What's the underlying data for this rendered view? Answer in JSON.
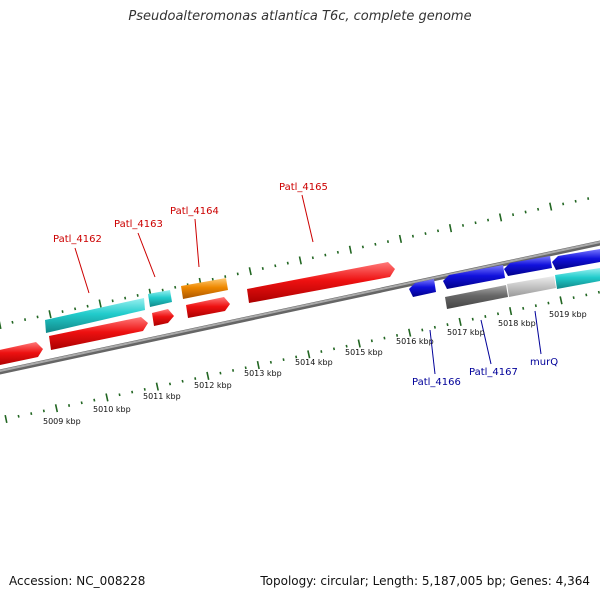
{
  "title": "Pseudoalteromonas atlantica T6c, complete genome",
  "accession": "Accession: NC_008228",
  "summary": "Topology: circular; Length: 5,187,005 bp; Genes: 4,364",
  "ticks": [
    "5009 kbp",
    "5010 kbp",
    "5011 kbp",
    "5012 kbp",
    "5013 kbp",
    "5014 kbp",
    "5015 kbp",
    "5016 kbp",
    "5017 kbp",
    "5018 kbp",
    "5019 kbp"
  ],
  "labels": {
    "patl4162": "Patl_4162",
    "patl4163": "Patl_4163",
    "patl4164": "Patl_4164",
    "patl4165": "Patl_4165",
    "patl4166": "Patl_4166",
    "patl4167": "Patl_4167",
    "murq": "murQ"
  },
  "colors": {
    "forward_cds": "#ee1111",
    "reverse_cds": "#1111dd",
    "cyan": "#22cccc",
    "orange": "#ee8800",
    "gray": "#777777",
    "backbone": "#888888",
    "tick_green": "#226622",
    "forward_label": "#cc0000",
    "reverse_label": "#000099"
  }
}
